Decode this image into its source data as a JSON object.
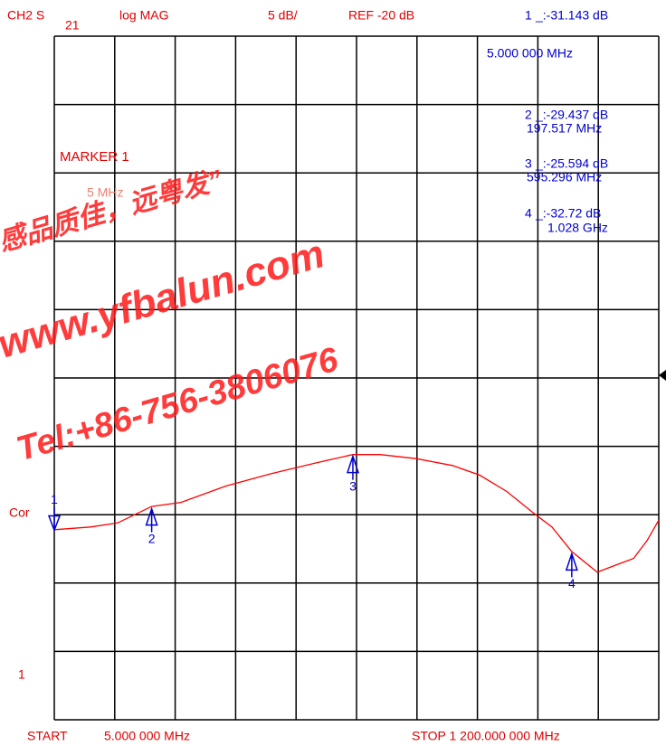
{
  "chart_data": {
    "type": "line",
    "header": {
      "channel": "CH2 S",
      "param_sub": "21",
      "format": "log MAG",
      "scale": "5 dB/",
      "ref": "REF -20 dB"
    },
    "annotations": {
      "marker_title": "MARKER 1",
      "marker_freq": "5 MHz",
      "cor": "Cor",
      "channel_num": "1"
    },
    "start_label": "START",
    "start": "5.000 000 MHz",
    "stop": "STOP 1 200.000 000 MHz",
    "watermark": [
      "感品质佳，远粤发”",
      "www.yfbalun.com",
      "Tel:+86-756-3806076"
    ],
    "xlim": [
      5,
      1200
    ],
    "xticks": [
      5,
      124.5,
      244,
      363.5,
      483,
      602.5,
      722,
      841.5,
      961,
      1080.5,
      1200
    ],
    "ylim": [
      -45,
      5
    ],
    "yticks": [
      -45,
      -40,
      -35,
      -30,
      -25,
      -20,
      -15,
      -10,
      -5,
      0,
      5
    ],
    "grid": true,
    "color": "#ff0000",
    "x": [
      5,
      76.6,
      130.2,
      197.5,
      255.4,
      344.9,
      434.3,
      523.8,
      595.3,
      649,
      720.6,
      792.1,
      845.8,
      899.5,
      953.1,
      988.9,
      1028,
      1078.4,
      1114.2,
      1150,
      1176.8,
      1200
    ],
    "values": [
      -31.1,
      -30.9,
      -30.6,
      -29.4,
      -29.1,
      -27.9,
      -27,
      -26.2,
      -25.6,
      -25.6,
      -25.9,
      -26.4,
      -27.1,
      -28.3,
      -29.9,
      -30.9,
      -32.7,
      -34.2,
      -33.7,
      -33.2,
      -31.9,
      -30.4
    ],
    "marker_color": "#0000d0",
    "markers": [
      {
        "id": "1",
        "readout": "_:-31.143 dB",
        "freq": "5.000 000 MHz",
        "x": 5,
        "y": -31.143
      },
      {
        "id": "2",
        "readout": "_:-29.437 dB",
        "freq": "197.517 MHz",
        "x": 197.517,
        "y": -29.437
      },
      {
        "id": "3",
        "readout": "_:-25.594 dB",
        "freq": "595.296 MHz",
        "x": 595.296,
        "y": -25.594
      },
      {
        "id": "4",
        "readout": "_:-32.72 dB",
        "freq": "1.028 GHz",
        "x": 1028,
        "y": -32.72
      }
    ]
  }
}
